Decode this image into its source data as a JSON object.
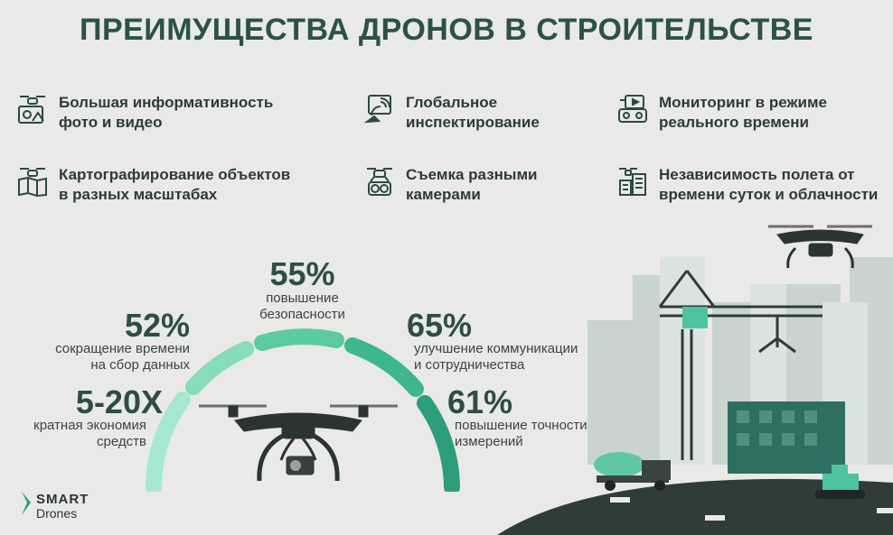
{
  "title": "ПРЕИМУЩЕСТВА ДРОНОВ В СТРОИТЕЛЬСТВЕ",
  "features": [
    {
      "icon": "drone-photo-icon",
      "line1": "Большая информативность",
      "line2": "фото и видео"
    },
    {
      "icon": "satellite-dish-icon",
      "line1": "Глобальное",
      "line2": "инспектирование"
    },
    {
      "icon": "remote-controller-icon",
      "line1": "Мониторинг в режиме",
      "line2": "реального времени"
    },
    {
      "icon": "drone-map-icon",
      "line1": "Картографирование объектов",
      "line2": "в разных масштабах"
    },
    {
      "icon": "drone-camera-icon",
      "line1": "Съемка разными",
      "line2": "камерами"
    },
    {
      "icon": "drone-city-icon",
      "line1": "Независимость полета от",
      "line2": "времени суток и облачности"
    }
  ],
  "stats": {
    "s55": {
      "value": "55%",
      "line1": "повышение",
      "line2": "безопасности"
    },
    "s52": {
      "value": "52%",
      "line1": "сокращение времени",
      "line2": "на сбор данных"
    },
    "s65": {
      "value": "65%",
      "line1": "улучшение коммуникации",
      "line2": "и сотрудничества"
    },
    "s520": {
      "value": "5-20X",
      "line1": "кратная экономия",
      "line2": "средств"
    },
    "s61": {
      "value": "61%",
      "line1": "повышение точности",
      "line2": "измерений"
    }
  },
  "logo": {
    "line1": "SMART",
    "line2": "Drones"
  },
  "colors": {
    "accent": "#2e9d7b",
    "light_accent": "#8ee3c2",
    "dark": "#2b3a36",
    "title": "#2b5246"
  }
}
